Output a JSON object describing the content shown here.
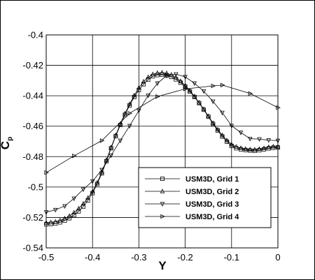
{
  "chart_data": {
    "type": "line",
    "title": "",
    "xlabel": "Y",
    "ylabel_main": "C",
    "ylabel_sub": "p",
    "xlim": [
      -0.5,
      0
    ],
    "ylim": [
      -0.54,
      -0.4
    ],
    "xticks": [
      -0.5,
      -0.4,
      -0.3,
      -0.2,
      -0.1,
      0
    ],
    "xtick_labels": [
      "-0.5",
      "-0.4",
      "-0.3",
      "-0.2",
      "-0.1",
      "0"
    ],
    "yticks": [
      -0.54,
      -0.52,
      -0.5,
      -0.48,
      -0.46,
      -0.44,
      -0.42,
      -0.4
    ],
    "ytick_labels": [
      "-0.54",
      "-0.52",
      "-0.5",
      "-0.48",
      "-0.46",
      "-0.44",
      "-0.42",
      "-0.4"
    ],
    "grid": true,
    "legend_position": "lower-right",
    "series": [
      {
        "name": "USM3D, Grid 1",
        "marker": "square",
        "x": [
          -0.5,
          -0.49,
          -0.48,
          -0.47,
          -0.46,
          -0.45,
          -0.44,
          -0.43,
          -0.42,
          -0.41,
          -0.4,
          -0.39,
          -0.38,
          -0.37,
          -0.36,
          -0.35,
          -0.34,
          -0.33,
          -0.32,
          -0.31,
          -0.3,
          -0.29,
          -0.28,
          -0.27,
          -0.26,
          -0.25,
          -0.24,
          -0.23,
          -0.22,
          -0.21,
          -0.2,
          -0.19,
          -0.18,
          -0.17,
          -0.16,
          -0.15,
          -0.14,
          -0.13,
          -0.12,
          -0.11,
          -0.1,
          -0.09,
          -0.08,
          -0.07,
          -0.06,
          -0.05,
          -0.04,
          -0.03,
          -0.02,
          -0.01,
          0
        ],
        "y": [
          -0.5245,
          -0.5243,
          -0.524,
          -0.5232,
          -0.522,
          -0.5205,
          -0.5185,
          -0.516,
          -0.5128,
          -0.5088,
          -0.504,
          -0.498,
          -0.491,
          -0.483,
          -0.4745,
          -0.4665,
          -0.4592,
          -0.4525,
          -0.4463,
          -0.4408,
          -0.4362,
          -0.4324,
          -0.4294,
          -0.4272,
          -0.4264,
          -0.4262,
          -0.4266,
          -0.4276,
          -0.4292,
          -0.4314,
          -0.434,
          -0.4372,
          -0.4408,
          -0.4448,
          -0.4492,
          -0.4538,
          -0.4585,
          -0.4628,
          -0.4668,
          -0.4702,
          -0.473,
          -0.4745,
          -0.4752,
          -0.4757,
          -0.476,
          -0.4762,
          -0.4758,
          -0.4752,
          -0.4746,
          -0.4742,
          -0.474
        ]
      },
      {
        "name": "USM3D, Grid 2",
        "marker": "triangle-up",
        "x": [
          -0.5,
          -0.49,
          -0.48,
          -0.47,
          -0.46,
          -0.45,
          -0.44,
          -0.43,
          -0.42,
          -0.41,
          -0.4,
          -0.39,
          -0.38,
          -0.37,
          -0.36,
          -0.35,
          -0.34,
          -0.33,
          -0.32,
          -0.31,
          -0.3,
          -0.29,
          -0.28,
          -0.27,
          -0.26,
          -0.25,
          -0.24,
          -0.23,
          -0.22,
          -0.21,
          -0.2,
          -0.19,
          -0.18,
          -0.17,
          -0.16,
          -0.15,
          -0.14,
          -0.13,
          -0.12,
          -0.11,
          -0.1,
          -0.09,
          -0.08,
          -0.07,
          -0.06,
          -0.05,
          -0.04,
          -0.03,
          -0.02,
          -0.01,
          0
        ],
        "y": [
          -0.5235,
          -0.5232,
          -0.5228,
          -0.522,
          -0.5207,
          -0.519,
          -0.5168,
          -0.5142,
          -0.511,
          -0.5072,
          -0.503,
          -0.4972,
          -0.4903,
          -0.4823,
          -0.474,
          -0.466,
          -0.4585,
          -0.4517,
          -0.4455,
          -0.4398,
          -0.4348,
          -0.4307,
          -0.4278,
          -0.4259,
          -0.425,
          -0.4248,
          -0.4252,
          -0.4262,
          -0.428,
          -0.4304,
          -0.4333,
          -0.4366,
          -0.4404,
          -0.4445,
          -0.4488,
          -0.4534,
          -0.458,
          -0.4622,
          -0.466,
          -0.4693,
          -0.472,
          -0.4735,
          -0.4744,
          -0.475,
          -0.4753,
          -0.4754,
          -0.475,
          -0.4745,
          -0.4738,
          -0.4734,
          -0.4735
        ]
      },
      {
        "name": "USM3D, Grid 3",
        "marker": "triangle-down",
        "x": [
          -0.5,
          -0.48,
          -0.46,
          -0.44,
          -0.42,
          -0.4,
          -0.38,
          -0.36,
          -0.34,
          -0.32,
          -0.3,
          -0.28,
          -0.26,
          -0.24,
          -0.22,
          -0.2,
          -0.18,
          -0.16,
          -0.14,
          -0.12,
          -0.1,
          -0.08,
          -0.06,
          -0.04,
          -0.02,
          0
        ],
        "y": [
          -0.5165,
          -0.515,
          -0.5125,
          -0.5075,
          -0.5015,
          -0.4962,
          -0.4887,
          -0.4792,
          -0.4694,
          -0.4598,
          -0.4497,
          -0.4398,
          -0.4318,
          -0.4268,
          -0.4258,
          -0.4276,
          -0.4318,
          -0.437,
          -0.4437,
          -0.4511,
          -0.4597,
          -0.4642,
          -0.4682,
          -0.4685,
          -0.4692,
          -0.4695
        ]
      },
      {
        "name": "USM3D, Grid 4",
        "marker": "triangle-right",
        "x": [
          -0.5,
          -0.44,
          -0.38,
          -0.32,
          -0.26,
          -0.2,
          -0.14,
          -0.12,
          -0.06,
          0
        ],
        "y": [
          -0.4905,
          -0.4795,
          -0.4695,
          -0.4515,
          -0.4405,
          -0.4355,
          -0.4335,
          -0.433,
          -0.4385,
          -0.4478
        ]
      }
    ]
  }
}
